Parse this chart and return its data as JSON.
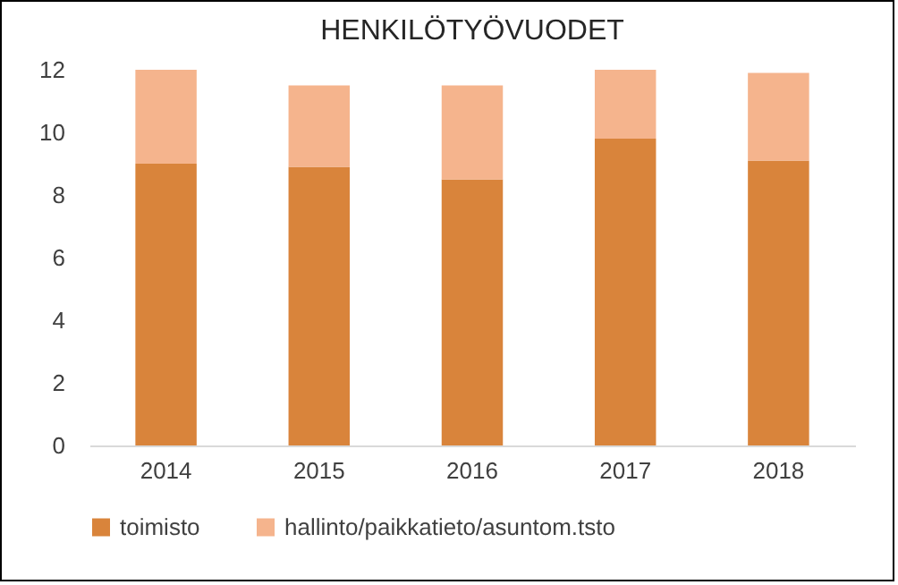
{
  "chart_data": {
    "type": "bar",
    "title": "HENKILÖTYÖVUODET",
    "categories": [
      "2014",
      "2015",
      "2016",
      "2017",
      "2018"
    ],
    "stacked": true,
    "series": [
      {
        "name": "toimisto",
        "color": "#d9843b",
        "values": [
          9.0,
          8.9,
          8.5,
          9.8,
          9.1
        ]
      },
      {
        "name": "hallinto/paikkatieto/asuntom.tsto",
        "color": "#f5b48d",
        "values": [
          3.0,
          2.6,
          3.0,
          2.2,
          2.8
        ]
      }
    ],
    "ylim": [
      0,
      12
    ],
    "yticks": [
      0,
      2,
      4,
      6,
      8,
      10,
      12
    ],
    "grid": false,
    "legend": "bottom"
  }
}
